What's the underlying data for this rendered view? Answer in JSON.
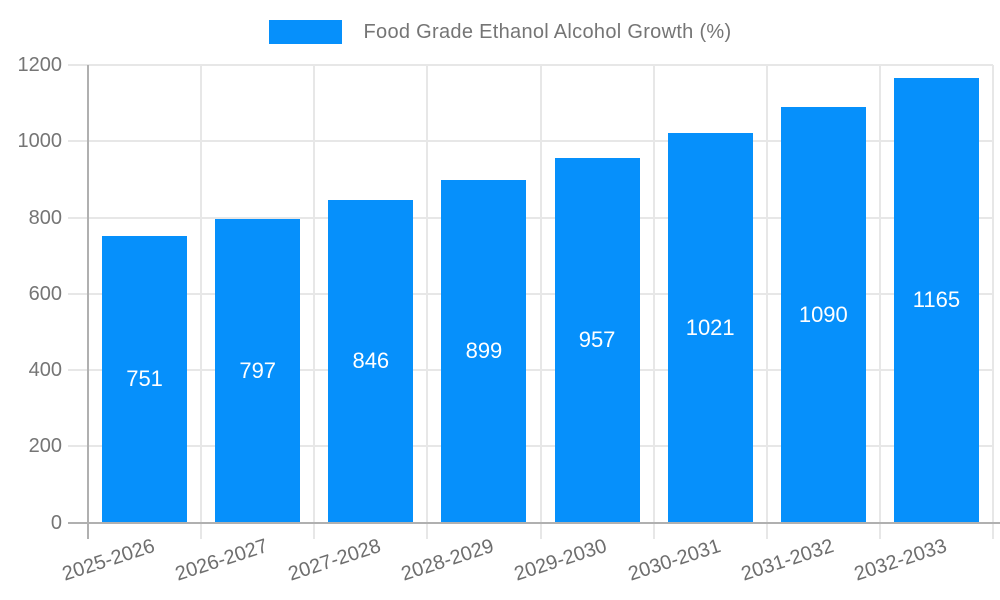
{
  "legend": {
    "label": "Food Grade Ethanol Alcohol Growth (%)"
  },
  "colors": {
    "bar": "#0690FB",
    "grid": "#e7e7e7",
    "axis": "#b0b0b0",
    "axis_label": "#757575",
    "data_label": "#ffffff"
  },
  "chart_data": {
    "type": "bar",
    "title": "Food Grade Ethanol Alcohol Growth (%)",
    "categories": [
      "2025-2026",
      "2026-2027",
      "2027-2028",
      "2028-2029",
      "2029-2030",
      "2030-2031",
      "2031-2032",
      "2032-2033"
    ],
    "values": [
      751,
      797,
      846,
      899,
      957,
      1021,
      1090,
      1165
    ],
    "xlabel": "",
    "ylabel": "",
    "ylim": [
      0,
      1200
    ],
    "yticks": [
      0,
      200,
      400,
      600,
      800,
      1000,
      1200
    ],
    "grid": true,
    "legend_position": "top",
    "data_labels": "inside-center"
  }
}
